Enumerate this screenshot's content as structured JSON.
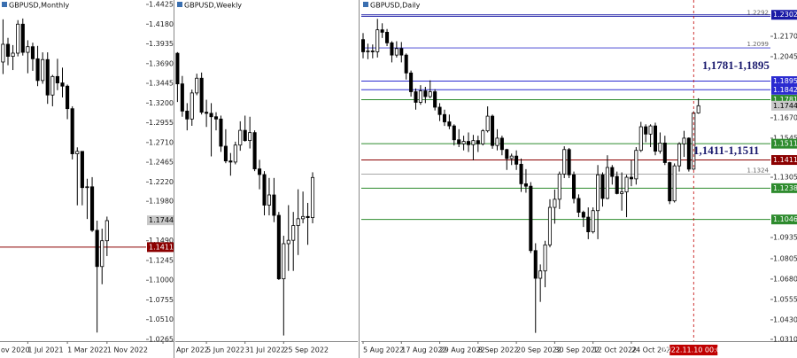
{
  "chart_data": [
    {
      "type": "candlestick",
      "title": "GBPUSD,Monthly",
      "xlim": [
        0.39,
        29.9
      ],
      "ylim": [
        1.0243,
        1.448
      ],
      "xticks": [
        {
          "value": -2,
          "label": "ov 2020"
        },
        {
          "value": 6,
          "label": "1 Jul 2021"
        },
        {
          "value": 14,
          "label": "1 Mar 2022"
        },
        {
          "value": 22,
          "label": "1 Nov 2022"
        }
      ],
      "yticks": [
        {
          "value": 1.4425,
          "label": "1.4425"
        },
        {
          "value": 1.418,
          "label": "1.4180"
        },
        1.3935,
        {
          "value": 1.369,
          "label": "1.3690"
        },
        1.3445,
        {
          "value": 1.32,
          "label": "1.3200"
        },
        1.2955,
        {
          "value": 1.271,
          "label": "1.2710"
        },
        1.2465,
        {
          "value": 1.222,
          "label": "1.2220"
        },
        {
          "value": 1.198,
          "label": "1.1980"
        },
        {
          "value": 1.149,
          "label": "1.1490"
        },
        1.1245,
        {
          "value": 1.1,
          "label": "1.1000"
        },
        1.0755,
        {
          "value": 1.051,
          "label": "1.0510"
        },
        1.0265
      ],
      "open": [
        1.367,
        1.371,
        1.393,
        1.378,
        1.382,
        1.418,
        1.383,
        1.39,
        1.375,
        1.348,
        1.374,
        1.33,
        1.353,
        1.345,
        1.341,
        1.313,
        1.257,
        1.26,
        1.215,
        1.216,
        1.162,
        1.117,
        1.149
      ],
      "high": [
        1.376,
        1.424,
        1.401,
        1.392,
        1.423,
        1.425,
        1.398,
        1.395,
        1.391,
        1.383,
        1.383,
        1.355,
        1.375,
        1.364,
        1.343,
        1.316,
        1.265,
        1.26,
        1.226,
        1.228,
        1.174,
        1.164,
        1.179
      ],
      "low": [
        1.352,
        1.356,
        1.367,
        1.361,
        1.378,
        1.379,
        1.357,
        1.36,
        1.341,
        1.344,
        1.319,
        1.316,
        1.336,
        1.327,
        1.3,
        1.25,
        1.193,
        1.193,
        1.176,
        1.16,
        1.035,
        1.095,
        1.13
      ],
      "close": [
        1.371,
        1.393,
        1.378,
        1.382,
        1.418,
        1.383,
        1.39,
        1.375,
        1.348,
        1.374,
        1.33,
        1.353,
        1.345,
        1.341,
        1.313,
        1.257,
        1.26,
        1.215,
        1.216,
        1.162,
        1.117,
        1.149,
        1.174
      ],
      "up_color": "#ffffff",
      "down_color": "#000000",
      "levels": [
        {
          "value": 1.1744,
          "label": "1.1744",
          "color": "#c8c8c8",
          "line": false
        },
        {
          "value": 1.1411,
          "label": "1.1411",
          "color": "#8b0000",
          "line": true
        }
      ]
    },
    {
      "type": "candlestick",
      "title": "GBPUSD,Weekly",
      "xlim": [
        -0.44,
        37.17
      ],
      "ylim": [
        1.03,
        1.331
      ],
      "xticks": [
        {
          "value": -3,
          "label": "Apr 2022"
        },
        {
          "value": 6,
          "label": "5 Jun 2022"
        },
        {
          "value": 14,
          "label": "31 Jul 2022"
        },
        {
          "value": 22,
          "label": "25 Sep 2022"
        }
      ],
      "open": [
        1.284,
        1.257,
        1.233,
        1.226,
        1.249,
        1.262,
        1.232,
        1.231,
        1.228,
        1.226,
        1.202,
        1.189,
        1.188,
        1.203,
        1.216,
        1.207,
        1.214,
        1.182,
        1.177,
        1.15,
        1.159,
        1.141,
        1.085,
        1.116,
        1.119,
        1.132,
        1.138,
        1.14,
        1.139
      ],
      "high": [
        1.285,
        1.264,
        1.24,
        1.252,
        1.266,
        1.267,
        1.243,
        1.24,
        1.232,
        1.229,
        1.217,
        1.196,
        1.206,
        1.224,
        1.229,
        1.228,
        1.216,
        1.19,
        1.18,
        1.174,
        1.174,
        1.144,
        1.123,
        1.15,
        1.144,
        1.164,
        1.162,
        1.152,
        1.179
      ],
      "low": [
        1.241,
        1.228,
        1.216,
        1.22,
        1.247,
        1.23,
        1.219,
        1.193,
        1.216,
        1.197,
        1.187,
        1.176,
        1.186,
        1.198,
        1.206,
        1.2,
        1.18,
        1.164,
        1.141,
        1.141,
        1.135,
        1.084,
        1.035,
        1.092,
        1.092,
        1.106,
        1.134,
        1.115,
        1.134
      ],
      "close": [
        1.257,
        1.233,
        1.226,
        1.249,
        1.262,
        1.232,
        1.231,
        1.228,
        1.226,
        1.202,
        1.189,
        1.188,
        1.203,
        1.216,
        1.207,
        1.214,
        1.182,
        1.177,
        1.15,
        1.159,
        1.141,
        1.085,
        1.116,
        1.119,
        1.132,
        1.138,
        1.14,
        1.139,
        1.1744
      ],
      "up_color": "#ffffff",
      "down_color": "#000000"
    },
    {
      "type": "candlestick",
      "title": "GBPUSD,Daily",
      "xlim": [
        -0.37,
        85.03
      ],
      "ylim": [
        1.0299,
        1.2393
      ],
      "xticks": [
        {
          "value": 0,
          "label": "5 Aug 2022"
        },
        {
          "value": 8,
          "label": "17 Aug 2022"
        },
        {
          "value": 16,
          "label": "29 Aug 2022"
        },
        {
          "value": 24,
          "label": "8 Sep 2022"
        },
        {
          "value": 32,
          "label": "20 Sep 2022"
        },
        {
          "value": 40,
          "label": "30 Sep 2022"
        },
        {
          "value": 48,
          "label": "12 Oct 2022"
        },
        {
          "value": 56,
          "label": "24 Oct 2022"
        }
      ],
      "yticks": [
        {
          "value": 1.217,
          "label": "1.2170"
        },
        1.2045,
        {
          "value": 1.167,
          "label": "1.1670"
        },
        1.1545,
        1.1305,
        1.0935,
        1.0805,
        {
          "value": 1.068,
          "label": "1.0680"
        },
        1.0555,
        {
          "value": 1.043,
          "label": "1.0430"
        },
        {
          "value": 1.031,
          "label": "1.0310"
        }
      ],
      "open": [
        1.215,
        1.2075,
        1.208,
        1.2075,
        1.221,
        1.2195,
        1.213,
        1.2055,
        1.2095,
        1.2055,
        1.1945,
        1.183,
        1.1765,
        1.1835,
        1.18,
        1.183,
        1.1735,
        1.169,
        1.1645,
        1.162,
        1.1535,
        1.151,
        1.1525,
        1.1505,
        1.153,
        1.151,
        1.159,
        1.168,
        1.15,
        1.1545,
        1.1475,
        1.142,
        1.1435,
        1.1385,
        1.1265,
        1.125,
        1.0855,
        1.0685,
        1.073,
        1.089,
        1.112,
        1.117,
        1.1325,
        1.1475,
        1.132,
        1.1175,
        1.109,
        1.106,
        1.097,
        1.11,
        1.132,
        1.1175,
        1.1365,
        1.131,
        1.1205,
        1.1215,
        1.1305,
        1.1295,
        1.147,
        1.1615,
        1.157,
        1.162,
        1.1465,
        1.1515,
        1.1395,
        1.116,
        1.1375,
        1.151,
        1.1545,
        1.1355,
        1.17
      ],
      "high": [
        1.219,
        1.2125,
        1.212,
        1.2277,
        1.225,
        1.2215,
        1.214,
        1.214,
        1.2135,
        1.2065,
        1.196,
        1.185,
        1.187,
        1.186,
        1.19,
        1.1845,
        1.176,
        1.172,
        1.169,
        1.163,
        1.16,
        1.156,
        1.158,
        1.1565,
        1.156,
        1.16,
        1.174,
        1.169,
        1.16,
        1.156,
        1.148,
        1.145,
        1.147,
        1.142,
        1.1355,
        1.1275,
        1.09,
        1.077,
        1.0915,
        1.117,
        1.123,
        1.134,
        1.1495,
        1.1485,
        1.134,
        1.12,
        1.11,
        1.112,
        1.112,
        1.138,
        1.1335,
        1.144,
        1.138,
        1.134,
        1.1335,
        1.132,
        1.141,
        1.149,
        1.1645,
        1.163,
        1.163,
        1.164,
        1.158,
        1.156,
        1.14,
        1.139,
        1.152,
        1.159,
        1.155,
        1.171,
        1.179
      ],
      "low": [
        1.2035,
        1.203,
        1.2035,
        1.204,
        1.216,
        1.211,
        1.201,
        1.204,
        1.201,
        1.1905,
        1.18,
        1.172,
        1.175,
        1.176,
        1.179,
        1.1715,
        1.165,
        1.162,
        1.16,
        1.15,
        1.149,
        1.147,
        1.146,
        1.141,
        1.146,
        1.15,
        1.158,
        1.148,
        1.147,
        1.144,
        1.135,
        1.138,
        1.135,
        1.1215,
        1.121,
        1.084,
        1.035,
        1.054,
        1.063,
        1.0875,
        1.102,
        1.111,
        1.13,
        1.13,
        1.1145,
        1.106,
        1.1,
        1.0925,
        1.096,
        1.0925,
        1.1125,
        1.117,
        1.126,
        1.12,
        1.11,
        1.106,
        1.125,
        1.126,
        1.146,
        1.152,
        1.149,
        1.144,
        1.145,
        1.138,
        1.114,
        1.115,
        1.134,
        1.143,
        1.134,
        1.135,
        1.1695
      ],
      "close": [
        1.2075,
        1.208,
        1.2075,
        1.221,
        1.2195,
        1.213,
        1.2055,
        1.2095,
        1.2055,
        1.1945,
        1.183,
        1.1765,
        1.1835,
        1.18,
        1.183,
        1.1735,
        1.169,
        1.1645,
        1.162,
        1.1535,
        1.151,
        1.1525,
        1.1505,
        1.153,
        1.151,
        1.159,
        1.168,
        1.15,
        1.1545,
        1.1475,
        1.142,
        1.1435,
        1.1385,
        1.1265,
        1.125,
        1.0855,
        1.0685,
        1.073,
        1.089,
        1.112,
        1.117,
        1.1325,
        1.1475,
        1.132,
        1.1175,
        1.109,
        1.106,
        1.097,
        1.11,
        1.132,
        1.1175,
        1.1365,
        1.131,
        1.1205,
        1.1215,
        1.1305,
        1.1295,
        1.147,
        1.1615,
        1.157,
        1.162,
        1.1465,
        1.1515,
        1.1395,
        1.116,
        1.1375,
        1.151,
        1.1545,
        1.1355,
        1.17,
        1.1744
      ],
      "up_color": "#ffffff",
      "down_color": "#000000",
      "levels": [
        {
          "value": 1.2302,
          "label": "1.2302",
          "color": "#1a1aa6",
          "line": true
        },
        {
          "value": 1.1895,
          "label": "1.1895",
          "color": "#2a2ad0",
          "line": true
        },
        {
          "value": 1.1842,
          "label": "1.1842",
          "color": "#2a2ad0",
          "line": true
        },
        {
          "value": 1.1781,
          "label": "1.1781",
          "color": "#2e8b2e",
          "line": true
        },
        {
          "value": 1.1744,
          "label": "1.1744",
          "color": "#c8c8c8",
          "line": false
        },
        {
          "value": 1.1511,
          "label": "1.1511",
          "color": "#2e8b2e",
          "line": true
        },
        {
          "value": 1.1411,
          "label": "1.1411",
          "color": "#8b0000",
          "line": true
        },
        {
          "value": 1.1238,
          "label": "1.1238",
          "color": "#2e8b2e",
          "line": true
        },
        {
          "value": 1.1046,
          "label": "1.1046",
          "color": "#2e8b2e",
          "line": true
        }
      ],
      "line_labels": [
        {
          "value": 1.2292,
          "label": "1.2292"
        },
        {
          "value": 1.2099,
          "label": "1.2099"
        },
        {
          "value": 1.1324,
          "label": "1.1324"
        }
      ],
      "annotations": [
        "1,1781-1,1895",
        "1,1411-1,1511"
      ],
      "cursor": {
        "value": 69,
        "label": "2022.11.10 00:00"
      }
    }
  ]
}
